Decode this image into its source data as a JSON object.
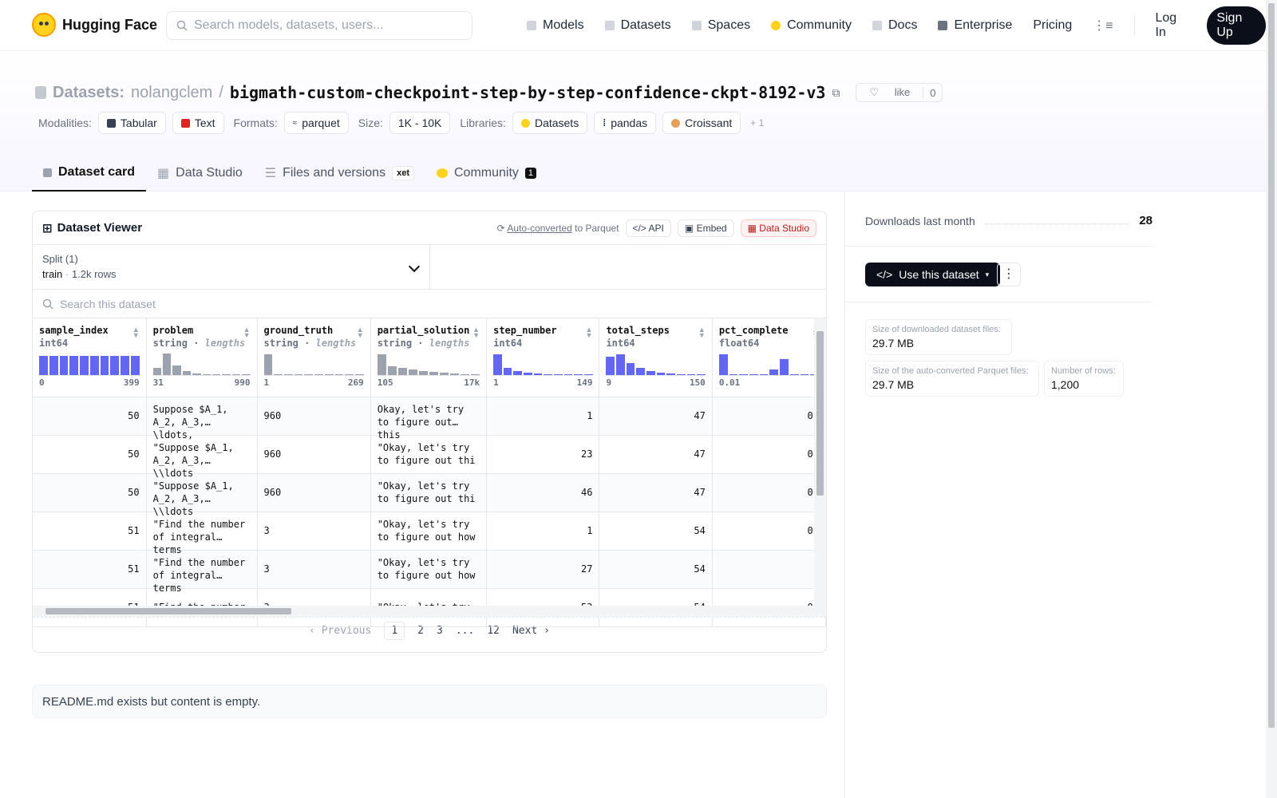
{
  "nav": {
    "brand": "Hugging Face",
    "search_placeholder": "Search models, datasets, users...",
    "links": [
      "Models",
      "Datasets",
      "Spaces",
      "Community",
      "Docs",
      "Enterprise",
      "Pricing"
    ],
    "login": "Log In",
    "signup": "Sign Up"
  },
  "header": {
    "section": "Datasets:",
    "owner": "nolangclem",
    "slash": "/",
    "name": "bigmath-custom-checkpoint-step-by-step-confidence-ckpt-8192-v3",
    "like": "like",
    "like_count": "0",
    "modalities_label": "Modalities:",
    "modalities": [
      "Tabular",
      "Text"
    ],
    "formats_label": "Formats:",
    "formats": [
      "parquet"
    ],
    "size_label": "Size:",
    "size": "1K - 10K",
    "libraries_label": "Libraries:",
    "libraries": [
      "Datasets",
      "pandas",
      "Croissant"
    ],
    "libraries_more": "+ 1"
  },
  "tabs": {
    "card": "Dataset card",
    "studio": "Data Studio",
    "files": "Files and versions",
    "xet": "xet",
    "community": "Community",
    "community_count": "1"
  },
  "viewer": {
    "title": "Dataset Viewer",
    "auto_converted": "Auto-converted",
    "to_parquet": "to Parquet",
    "api": "API",
    "embed": "Embed",
    "data_studio": "Data Studio",
    "split_label": "Split (1)",
    "split_name": "train",
    "split_rows": "1.2k rows",
    "search_placeholder": "Search this dataset",
    "columns": [
      {
        "name": "sample_index",
        "type": "int64",
        "extra": "",
        "min": "0",
        "max": "399",
        "hist": [
          0.9,
          0.9,
          0.9,
          0.9,
          0.9,
          0.9,
          0.9,
          0.9,
          0.9,
          0.9
        ],
        "color": "#6366f1"
      },
      {
        "name": "problem",
        "type": "string",
        "extra": "lengths",
        "min": "31",
        "max": "990",
        "hist": [
          0.35,
          1,
          0.45,
          0.2,
          0.08,
          0.05,
          0.03,
          0.02,
          0.02,
          0.02
        ],
        "color": "#9ca3af"
      },
      {
        "name": "ground_truth",
        "type": "string",
        "extra": "lengths",
        "min": "1",
        "max": "269",
        "hist": [
          0.95,
          0.05,
          0.02,
          0,
          0.02,
          0.02,
          0,
          0.02,
          0,
          0.02
        ],
        "color": "#9ca3af"
      },
      {
        "name": "partial_solution",
        "type": "string",
        "extra": "lengths",
        "min": "105",
        "max": "17k",
        "hist": [
          0.95,
          0.4,
          0.35,
          0.25,
          0.2,
          0.15,
          0.1,
          0.08,
          0.05,
          0.03
        ],
        "color": "#9ca3af"
      },
      {
        "name": "step_number",
        "type": "int64",
        "extra": "",
        "min": "1",
        "max": "149",
        "hist": [
          0.95,
          0.35,
          0.2,
          0.12,
          0.06,
          0.04,
          0.03,
          0.02,
          0.01,
          0.01
        ],
        "color": "#6366f1"
      },
      {
        "name": "total_steps",
        "type": "int64",
        "extra": "",
        "min": "9",
        "max": "150",
        "hist": [
          0.85,
          0.95,
          0.55,
          0.35,
          0.2,
          0.12,
          0.08,
          0.05,
          0.02,
          0.02
        ],
        "color": "#6366f1"
      },
      {
        "name": "pct_complete",
        "type": "float64",
        "extra": "",
        "min": "0.01",
        "max": "",
        "hist": [
          0.95,
          0.05,
          0,
          0,
          0,
          0.25,
          0.75,
          0,
          0,
          0
        ],
        "color": "#6366f1"
      }
    ],
    "rows": [
      [
        "50",
        "Suppose $A_1, A_2, A_3, \\ldots,",
        "960",
        "Okay, let's try to figure out this",
        "1",
        "47",
        "0."
      ],
      [
        "50",
        "\"Suppose $A_1, A_2, A_3, \\\\ldots",
        "960",
        "\"Okay, let's try to figure out thi",
        "23",
        "47",
        "0."
      ],
      [
        "50",
        "\"Suppose $A_1, A_2, A_3, \\\\ldots",
        "960",
        "\"Okay, let's try to figure out thi",
        "46",
        "47",
        "0."
      ],
      [
        "51",
        "\"Find the number of integral terms",
        "3",
        "\"Okay, let's try to figure out how",
        "1",
        "54",
        "0."
      ],
      [
        "51",
        "\"Find the number of integral terms",
        "3",
        "\"Okay, let's try to figure out how",
        "27",
        "54",
        ""
      ],
      [
        "51",
        "\"Find the number",
        "3",
        "\"Okay, let's try",
        "53",
        "54",
        "0."
      ]
    ],
    "pager": {
      "prev": "Previous",
      "pages": [
        "1",
        "2",
        "3",
        "...",
        "12"
      ],
      "next": "Next"
    }
  },
  "readme": "README.md exists but content is empty.",
  "sidebar": {
    "downloads_label": "Downloads last month",
    "downloads": "28",
    "use_button": "Use this dataset",
    "size_dl_label": "Size of downloaded dataset files:",
    "size_dl": "29.7 MB",
    "size_parquet_label": "Size of the auto-converted Parquet files:",
    "size_parquet": "29.7 MB",
    "rows_label": "Number of rows:",
    "rows": "1,200"
  }
}
